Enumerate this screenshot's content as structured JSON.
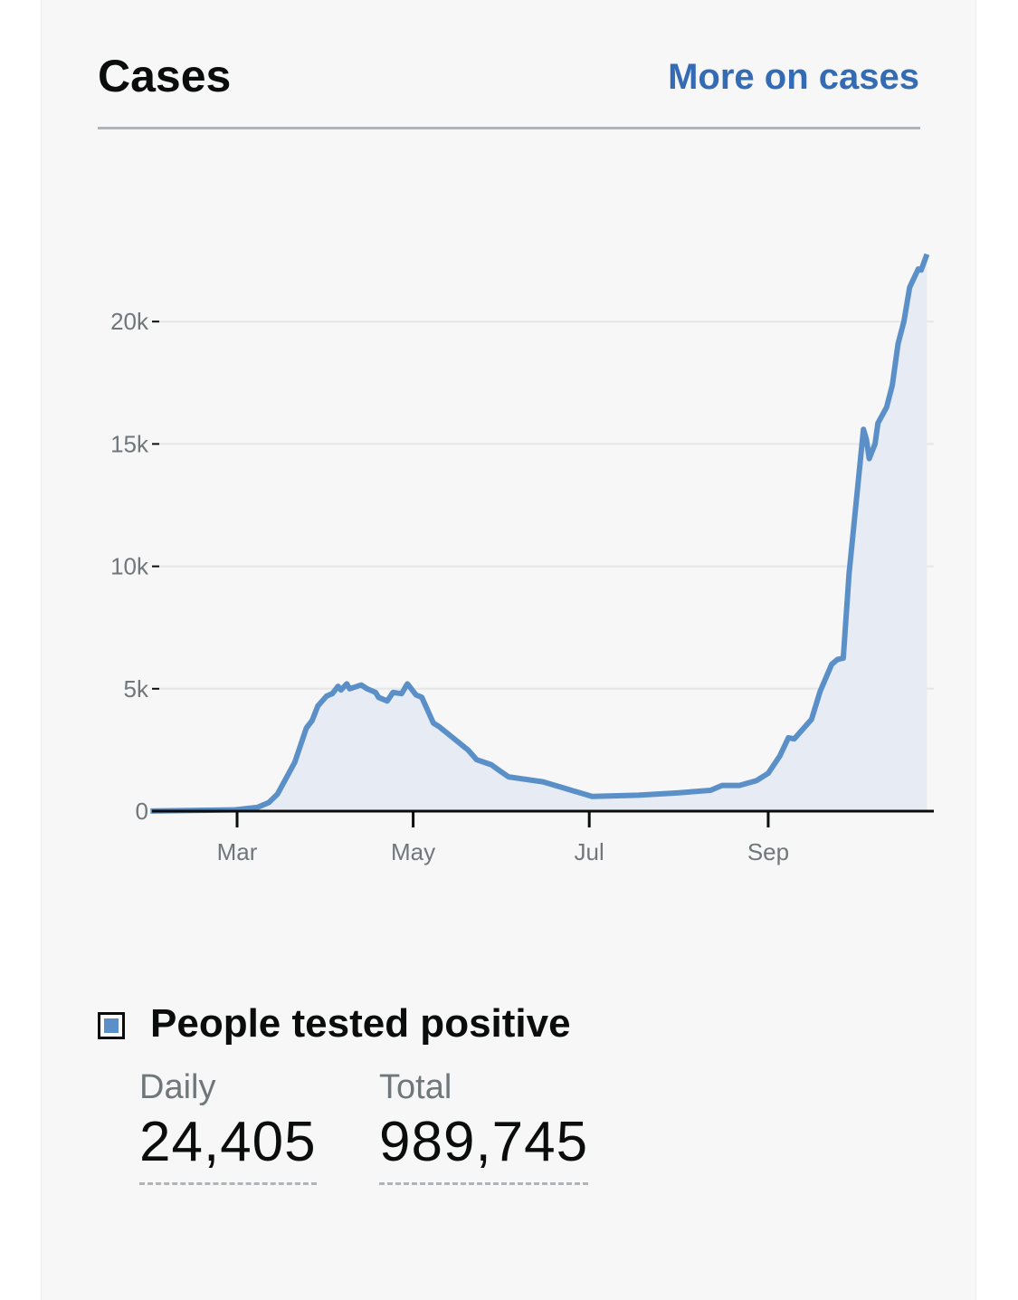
{
  "header": {
    "title": "Cases",
    "link": "More on cases"
  },
  "colors": {
    "accent": "#336bb5",
    "series": "#5b8fc8",
    "area": "#e7ebf4",
    "text": "#0b0c0c",
    "muted": "#6f777b"
  },
  "chart_data": {
    "type": "area",
    "title": "",
    "xlabel": "",
    "ylabel": "",
    "ylim": [
      0,
      23000
    ],
    "yticks": [
      0,
      5000,
      10000,
      15000,
      20000
    ],
    "ytick_labels": [
      "0",
      "5k",
      "10k",
      "15k",
      "20k"
    ],
    "xticks": [
      "2020-03-01",
      "2020-05-01",
      "2020-07-01",
      "2020-09-01"
    ],
    "xtick_labels": [
      "Mar",
      "May",
      "Jul",
      "Sep"
    ],
    "grid": true,
    "series": [
      {
        "name": "People tested positive",
        "points": [
          [
            "2020-01-31",
            2
          ],
          [
            "2020-02-29",
            50
          ],
          [
            "2020-03-08",
            150
          ],
          [
            "2020-03-12",
            350
          ],
          [
            "2020-03-15",
            700
          ],
          [
            "2020-03-21",
            2000
          ],
          [
            "2020-03-25",
            3400
          ],
          [
            "2020-03-27",
            3700
          ],
          [
            "2020-03-29",
            4300
          ],
          [
            "2020-04-01",
            4700
          ],
          [
            "2020-04-03",
            4800
          ],
          [
            "2020-04-05",
            5100
          ],
          [
            "2020-04-06",
            4950
          ],
          [
            "2020-04-08",
            5200
          ],
          [
            "2020-04-09",
            5000
          ],
          [
            "2020-04-13",
            5150
          ],
          [
            "2020-04-15",
            5000
          ],
          [
            "2020-04-18",
            4850
          ],
          [
            "2020-04-19",
            4650
          ],
          [
            "2020-04-22",
            4500
          ],
          [
            "2020-04-24",
            4850
          ],
          [
            "2020-04-27",
            4800
          ],
          [
            "2020-04-29",
            5200
          ],
          [
            "2020-04-30",
            5050
          ],
          [
            "2020-05-02",
            4750
          ],
          [
            "2020-05-04",
            4650
          ],
          [
            "2020-05-08",
            3600
          ],
          [
            "2020-05-10",
            3450
          ],
          [
            "2020-05-20",
            2500
          ],
          [
            "2020-05-23",
            2100
          ],
          [
            "2020-05-28",
            1900
          ],
          [
            "2020-05-31",
            1650
          ],
          [
            "2020-06-03",
            1400
          ],
          [
            "2020-06-15",
            1200
          ],
          [
            "2020-06-22",
            950
          ],
          [
            "2020-07-02",
            600
          ],
          [
            "2020-07-18",
            650
          ],
          [
            "2020-08-01",
            750
          ],
          [
            "2020-08-12",
            850
          ],
          [
            "2020-08-16",
            1050
          ],
          [
            "2020-08-22",
            1050
          ],
          [
            "2020-08-28",
            1250
          ],
          [
            "2020-09-01",
            1550
          ],
          [
            "2020-09-05",
            2250
          ],
          [
            "2020-09-08",
            3000
          ],
          [
            "2020-09-10",
            2950
          ],
          [
            "2020-09-16",
            3750
          ],
          [
            "2020-09-19",
            4900
          ],
          [
            "2020-09-23",
            6000
          ],
          [
            "2020-09-25",
            6200
          ],
          [
            "2020-09-27",
            6250
          ],
          [
            "2020-09-29",
            9700
          ],
          [
            "2020-10-04",
            15600
          ],
          [
            "2020-10-05",
            15200
          ],
          [
            "2020-10-06",
            14400
          ],
          [
            "2020-10-08",
            15000
          ],
          [
            "2020-10-09",
            15850
          ],
          [
            "2020-10-12",
            16500
          ],
          [
            "2020-10-14",
            17400
          ],
          [
            "2020-10-16",
            19100
          ],
          [
            "2020-10-18",
            20000
          ],
          [
            "2020-10-20",
            21400
          ],
          [
            "2020-10-23",
            22150
          ],
          [
            "2020-10-24",
            22100
          ],
          [
            "2020-10-26",
            22750
          ]
        ]
      }
    ]
  },
  "legend": {
    "label": "People tested positive"
  },
  "stats": {
    "daily": {
      "label": "Daily",
      "value": "24,405"
    },
    "total": {
      "label": "Total",
      "value": "989,745"
    }
  }
}
